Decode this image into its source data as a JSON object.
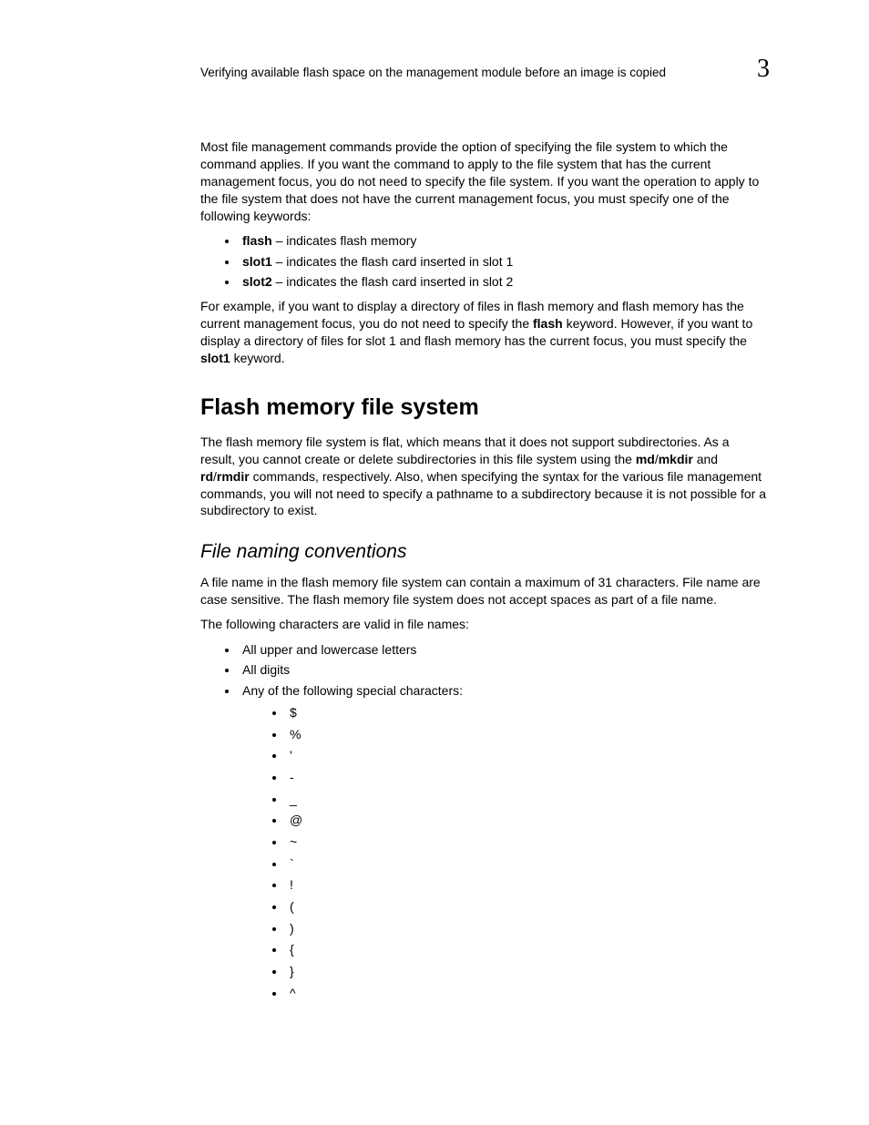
{
  "header": {
    "title": "Verifying available flash space on the management  module before an image is copied",
    "chapter": "3"
  },
  "intro_para": {
    "pre": "Most file management commands provide the option of specifying the file system to which the command applies. If you want the command to apply to the file system that has the current management focus, you do not need to specify the file system. If you want the operation to apply to the file system that does not have the current management focus, you must specify one of the following keywords:"
  },
  "kw_list": [
    {
      "kw": "flash",
      "desc": " – indicates flash memory"
    },
    {
      "kw": "slot1",
      "desc": " – indicates the flash card inserted in slot 1"
    },
    {
      "kw": "slot2",
      "desc": " – indicates the flash card inserted in slot 2"
    }
  ],
  "example_para": {
    "p1": "For example, if you want to display a directory of files in flash memory and flash memory has the current management focus, you do not need to specify the ",
    "b1": "flash",
    "p2": " keyword. However, if you want to display a directory of files for slot 1 and flash memory has the current focus, you must specify the ",
    "b2": "slot1",
    "p3": " keyword."
  },
  "section1": {
    "title": "Flash memory file system",
    "para": {
      "p1": "The flash memory file system is flat, which means that it does not support subdirectories. As a result, you cannot create or delete subdirectories in this file system using the ",
      "b1": "md",
      "s1": "/",
      "b2": "mkdir",
      "p2": " and ",
      "b3": "rd",
      "s2": "/",
      "b4": "rmdir",
      "p3": " commands, respectively. Also, when specifying the syntax for the various file management commands, you will not need to specify a pathname to a subdirectory because it is not possible for a subdirectory to exist."
    }
  },
  "section2": {
    "title": "File naming conventions",
    "para1": "A file name in the flash memory file system can contain a maximum of 31 characters. File name are case sensitive. The flash memory file system does not accept spaces as part of a file name.",
    "para2": "The following characters are valid in file names:",
    "items": [
      "All upper and lowercase letters",
      "All digits"
    ],
    "special_intro": "Any of the following special characters:",
    "special_chars": [
      "$",
      "%",
      "'",
      "-",
      "_",
      "@",
      "~",
      "`",
      "!",
      "(",
      ")",
      "{",
      "}",
      "^"
    ]
  }
}
